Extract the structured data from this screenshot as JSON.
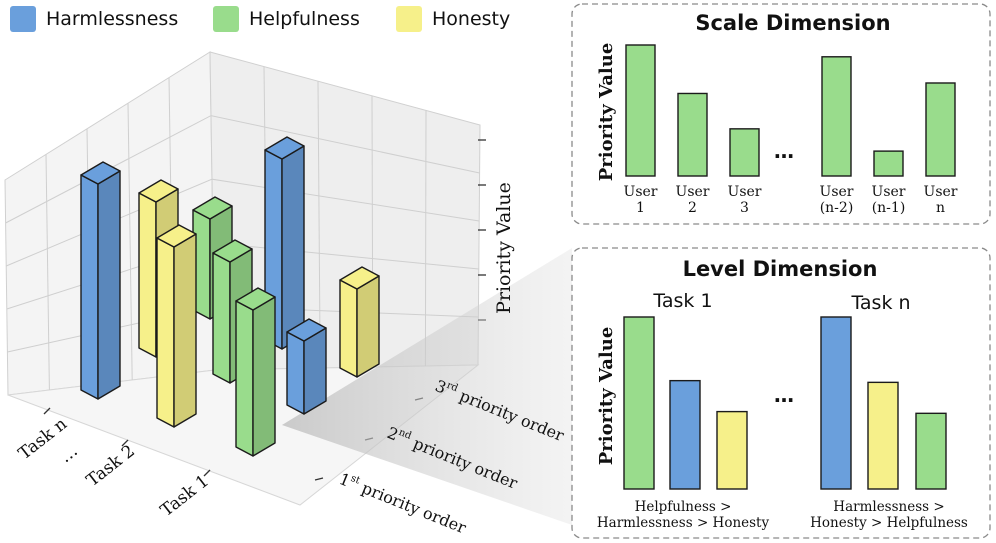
{
  "colors": {
    "harmlessness": "#6a9fdc",
    "helpfulness": "#99dc8c",
    "honesty": "#f6f08a",
    "edge": "#1b1b1b",
    "grid": "#cfcfcf",
    "panel_border": "#8a8a8a"
  },
  "legend": [
    {
      "label": "Harmlessness",
      "color_key": "harmlessness"
    },
    {
      "label": "Helpfulness",
      "color_key": "helpfulness"
    },
    {
      "label": "Honesty",
      "color_key": "honesty"
    }
  ],
  "plot3d": {
    "z_axis_label": "Priority Value",
    "task_labels": [
      "Task n",
      "…",
      "Task 2",
      "Task 1"
    ],
    "priority_labels": [
      {
        "num": "1",
        "sup": "st",
        "rest": " priority order"
      },
      {
        "num": "2",
        "sup": "nd",
        "rest": " priority order"
      },
      {
        "num": "3",
        "sup": "rd",
        "rest": " priority order"
      }
    ]
  },
  "scale_panel": {
    "title": "Scale Dimension",
    "ylabel": "Priority Value",
    "ellipsis": "…",
    "bars": [
      {
        "line1": "User",
        "line2": "1",
        "value": 1.0
      },
      {
        "line1": "User",
        "line2": "2",
        "value": 0.63
      },
      {
        "line1": "User",
        "line2": "3",
        "value": 0.36
      },
      {
        "line1": "User",
        "line2": "(n-2)",
        "value": 0.91
      },
      {
        "line1": "User",
        "line2": "(n-1)",
        "value": 0.19
      },
      {
        "line1": "User",
        "line2": "n",
        "value": 0.71
      }
    ]
  },
  "level_panel": {
    "title": "Level Dimension",
    "ylabel": "Priority Value",
    "ellipsis": "…",
    "groups": [
      {
        "task": "Task 1",
        "caption1": "Helpfulness >",
        "caption2": "Harmlessness > Honesty",
        "bars": [
          {
            "cat": "helpfulness",
            "value": 1.0
          },
          {
            "cat": "harmlessness",
            "value": 0.63
          },
          {
            "cat": "honesty",
            "value": 0.45
          }
        ]
      },
      {
        "task": "Task n",
        "caption1": "Harmlessness >",
        "caption2": "Honesty > Helpfulness",
        "bars": [
          {
            "cat": "harmlessness",
            "value": 1.0
          },
          {
            "cat": "honesty",
            "value": 0.62
          },
          {
            "cat": "helpfulness",
            "value": 0.44
          }
        ]
      }
    ]
  }
}
